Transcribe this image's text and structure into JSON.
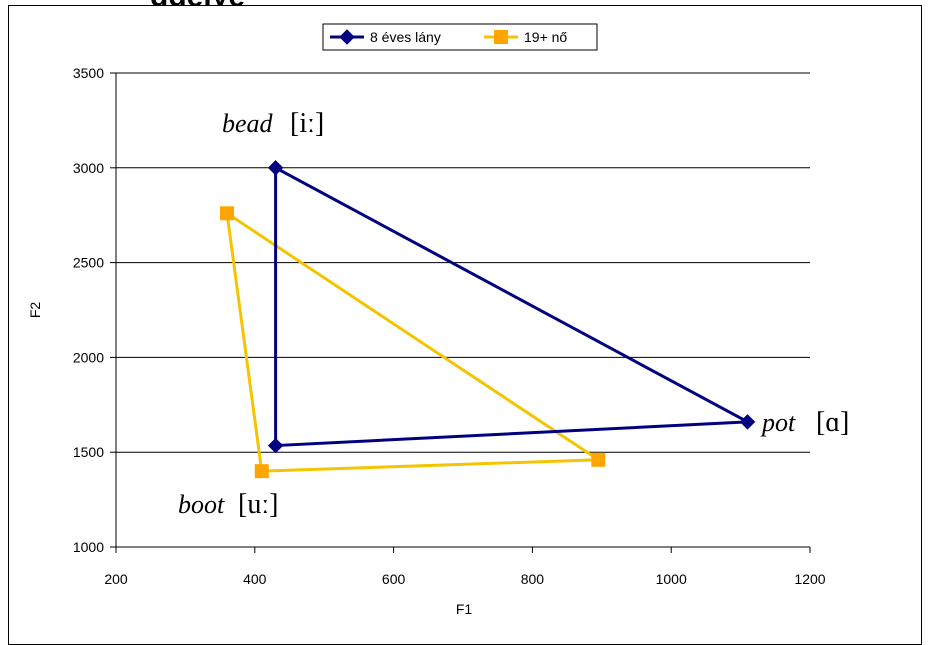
{
  "clipped_title": "ggelyé",
  "chart_data": {
    "type": "line",
    "xlabel": "F1",
    "ylabel": "F2",
    "xlim": [
      200,
      1200
    ],
    "ylim": [
      1000,
      3500
    ],
    "xticks": [
      200,
      400,
      600,
      800,
      1000,
      1200
    ],
    "yticks": [
      1000,
      1500,
      2000,
      2500,
      3000,
      3500
    ],
    "grid": "horizontal",
    "legend_position": "top",
    "series": [
      {
        "name": "8 éves lány",
        "color": "#000080",
        "marker": "diamond",
        "points": [
          {
            "x": 430,
            "y": 3000
          },
          {
            "x": 1110,
            "y": 1660
          },
          {
            "x": 430,
            "y": 1535
          },
          {
            "x": 430,
            "y": 3000
          }
        ]
      },
      {
        "name": "19+ nő",
        "color": "#FFA500",
        "line_color": "#F5C400",
        "marker": "square",
        "points": [
          {
            "x": 360,
            "y": 2760
          },
          {
            "x": 895,
            "y": 1460
          },
          {
            "x": 410,
            "y": 1400
          },
          {
            "x": 360,
            "y": 2760
          }
        ]
      }
    ],
    "annotations": [
      {
        "word": "bead",
        "ipa": "[iː]"
      },
      {
        "word": "pot",
        "ipa": "[ɑ]"
      },
      {
        "word": "boot",
        "ipa": "[uː]"
      }
    ]
  }
}
